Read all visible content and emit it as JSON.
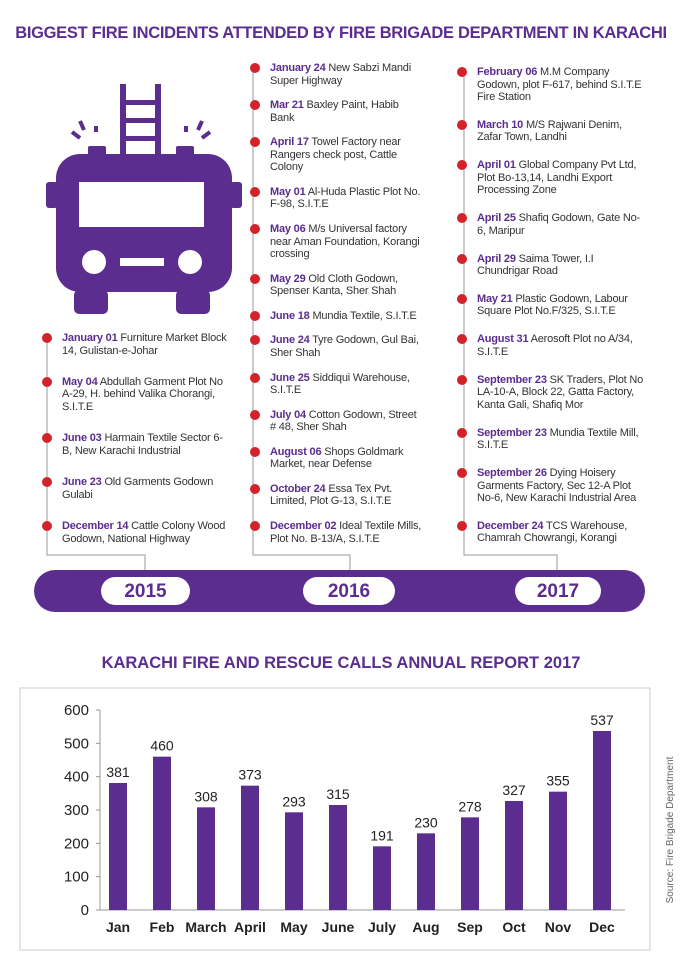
{
  "header": {
    "title": "BIGGEST FIRE INCIDENTS ATTENDED BY FIRE BRIGADE DEPARTMENT IN KARACHI"
  },
  "timeline": {
    "columns": [
      {
        "year": "2015",
        "entries": [
          {
            "date": "January 01",
            "text": "Furniture Market Block 14, Gulistan-e-Johar"
          },
          {
            "date": "May 04",
            "text": "Abdullah Garment Plot No A-29, H. behind Valika Chorangi, S.I.T.E"
          },
          {
            "date": "June 03",
            "text": "Harmain Textile Sector 6-B, New Karachi Industrial"
          },
          {
            "date": "June 23",
            "text": "Old Garments Godown Gulabi"
          },
          {
            "date": "December 14",
            "text": "Cattle Colony Wood Godown, National Highway"
          }
        ]
      },
      {
        "year": "2016",
        "entries": [
          {
            "date": "January 24",
            "text": "New Sabzi Mandi Super Highway"
          },
          {
            "date": "Mar 21",
            "text": "Baxley Paint, Habib Bank"
          },
          {
            "date": "April 17",
            "text": "Towel Factory near Rangers check post, Cattle Colony"
          },
          {
            "date": "May 01",
            "text": "Al-Huda Plastic Plot No. F-98, S.I.T.E"
          },
          {
            "date": "May 06",
            "text": "M/s Universal factory near Aman Foundation, Korangi crossing"
          },
          {
            "date": "May 29",
            "text": "Old Cloth Godown, Spenser Kanta, Sher Shah"
          },
          {
            "date": "June 18",
            "text": "Mundia Textile, S.I.T.E"
          },
          {
            "date": "June 24",
            "text": "Tyre Godown, Gul Bai, Sher Shah"
          },
          {
            "date": "June 25",
            "text": "Siddiqui Warehouse, S.I.T.E"
          },
          {
            "date": "July 04",
            "text": "Cotton Godown, Street # 48, Sher Shah"
          },
          {
            "date": "August 06",
            "text": "Shops Goldmark Market, near Defense"
          },
          {
            "date": "October 24",
            "text": "Essa Tex Pvt. Limited, Plot G-13, S.I.T.E"
          },
          {
            "date": "December 02",
            "text": "Ideal Textile Mills, Plot No. B-13/A, S.I.T.E"
          }
        ]
      },
      {
        "year": "2017",
        "entries": [
          {
            "date": "February 06",
            "text": "M.M Company Godown, plot F-617, behind S.I.T.E Fire Station"
          },
          {
            "date": "March 10",
            "text": "M/S Rajwani Denim, Zafar Town, Landhi"
          },
          {
            "date": "April 01",
            "text": "Global Company Pvt Ltd, Plot Bo-13,14, Landhi Export Processing Zone"
          },
          {
            "date": "April 25",
            "text": "Shafiq Godown, Gate No-6, Maripur"
          },
          {
            "date": "April 29",
            "text": "Saima Tower, I.I Chundrigar Road"
          },
          {
            "date": "May 21",
            "text": "Plastic Godown, Labour Square Plot No.F/325, S.I.T.E"
          },
          {
            "date": "August 31",
            "text": "Aerosoft Plot no A/34, S.I.T.E"
          },
          {
            "date": "September 23",
            "text": "SK Traders, Plot No LA-10-A, Block 22, Gatta Factory, Kanta Gali, Shafiq Mor"
          },
          {
            "date": "September 23",
            "text": "Mundia Textile Mill, S.I.T.E"
          },
          {
            "date": "September 26",
            "text": "Dying Hoisery Garments Factory, Sec 12-A Plot No-6, New Karachi Industrial Area"
          },
          {
            "date": "December 24",
            "text": "TCS Warehouse, Chamrah Chowrangi, Korangi"
          }
        ]
      }
    ]
  },
  "chart_data": {
    "type": "bar",
    "title": "KARACHI FIRE AND RESCUE CALLS ANNUAL REPORT 2017",
    "categories": [
      "Jan",
      "Feb",
      "March",
      "April",
      "May",
      "June",
      "July",
      "Aug",
      "Sep",
      "Oct",
      "Nov",
      "Dec"
    ],
    "values": [
      381,
      460,
      308,
      373,
      293,
      315,
      191,
      230,
      278,
      327,
      355,
      537
    ],
    "color": "#5b2d8e",
    "ylim": [
      0,
      600
    ],
    "yticks": [
      0,
      100,
      200,
      300,
      400,
      500,
      600
    ],
    "grid": false
  },
  "source": "Source: Fire Brigade Department"
}
